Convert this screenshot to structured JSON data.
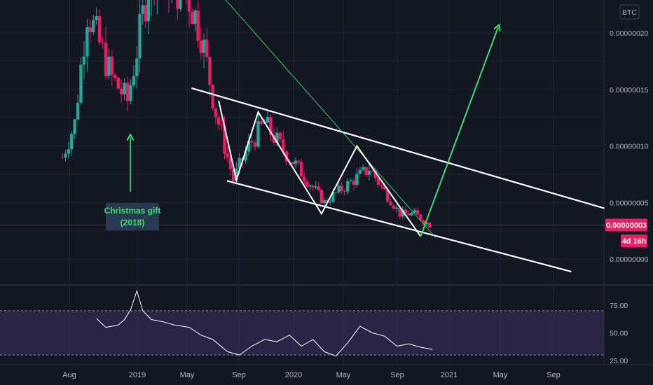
{
  "colors": {
    "background": "#131722",
    "grid": "#1f2431",
    "up": "#26a69a",
    "down": "#ef5350",
    "downPink": "#e91e63",
    "white": "#ffffff",
    "green": "#3ee06b",
    "rsi": "#ffffff",
    "rsiBand": "#7e57c2",
    "priceTag": "#e91e63",
    "axisText": "#b2b5be"
  },
  "header": {
    "currency_badge": "BTC"
  },
  "price_tag": {
    "value": "0.00000003",
    "countdown": "4d 16h"
  },
  "annotation": {
    "line1": "Christmas gift",
    "line2": "(2018)"
  },
  "chart_data": [
    {
      "type": "candlestick",
      "title": "",
      "x_tick_labels": [
        "Aug",
        "2019",
        "May",
        "Sep",
        "2020",
        "May",
        "Sep",
        "2021",
        "May",
        "Sep"
      ],
      "x_tick_dates": [
        "2018-08",
        "2019-01",
        "2019-05",
        "2019-09",
        "2020-01",
        "2020-05",
        "2020-09",
        "2021-01",
        "2021-05",
        "2021-09"
      ],
      "y_tick_labels": [
        "0.00000020",
        "0.00000015",
        "0.00000010",
        "0.00000005",
        "0.00000000"
      ],
      "y_ticks": [
        2e-07,
        1.5e-07,
        1e-07,
        5e-08,
        0.0
      ],
      "ylim": [
        -1.5e-08,
        2.45e-07
      ],
      "grid": true,
      "last_price": 3e-08,
      "candle_period": "weekly",
      "ohlc_samples": [
        {
          "date": "2018-07-16",
          "close": 9e-08
        },
        {
          "date": "2018-08-13",
          "close": 1.2e-07
        },
        {
          "date": "2018-09-10",
          "close": 2.2e-07
        },
        {
          "date": "2018-10-08",
          "close": 1.9e-07
        },
        {
          "date": "2018-11-05",
          "close": 1.6e-07
        },
        {
          "date": "2018-12-10",
          "close": 1.4e-07
        },
        {
          "date": "2019-01-07",
          "close": 2e-07
        },
        {
          "date": "2019-02-04",
          "close": 2.6e-07
        },
        {
          "date": "2019-05-06",
          "close": 2.3e-07
        },
        {
          "date": "2019-06-03",
          "close": 2e-07
        },
        {
          "date": "2019-07-08",
          "close": 1.3e-07
        },
        {
          "date": "2019-08-19",
          "close": 7e-08
        },
        {
          "date": "2019-09-23",
          "close": 1e-07
        },
        {
          "date": "2019-10-28",
          "close": 1.2e-07
        },
        {
          "date": "2019-12-02",
          "close": 1e-07
        },
        {
          "date": "2020-01-13",
          "close": 8e-08
        },
        {
          "date": "2020-03-16",
          "close": 5e-08
        },
        {
          "date": "2020-04-20",
          "close": 6e-08
        },
        {
          "date": "2020-05-25",
          "close": 7e-08
        },
        {
          "date": "2020-06-29",
          "close": 8e-08
        },
        {
          "date": "2020-08-03",
          "close": 6e-08
        },
        {
          "date": "2020-09-07",
          "close": 4e-08
        },
        {
          "date": "2020-10-12",
          "close": 4e-08
        },
        {
          "date": "2020-11-16",
          "close": 3e-08
        }
      ],
      "drawings": [
        {
          "kind": "channel-upper",
          "from": {
            "date": "2019-05-13",
            "value": 1.51e-07
          },
          "to": {
            "date": "2021-12-27",
            "value": 4.5e-08
          }
        },
        {
          "kind": "channel-lower",
          "from": {
            "date": "2019-08-05",
            "value": 6.9e-08
          },
          "to": {
            "date": "2021-10-11",
            "value": -1.1e-08
          }
        },
        {
          "kind": "descending-trendline",
          "from": {
            "date": "2019-06-17",
            "value": 2.48e-07
          },
          "to": {
            "date": "2020-11-30",
            "value": 1.9e-08
          }
        },
        {
          "kind": "zigzag",
          "points": [
            {
              "date": "2019-07-15",
              "value": 1.4e-07
            },
            {
              "date": "2019-08-26",
              "value": 7e-08
            },
            {
              "date": "2019-10-14",
              "value": 1.3e-07
            },
            {
              "date": "2020-03-09",
              "value": 4e-08
            },
            {
              "date": "2020-06-01",
              "value": 1e-07
            },
            {
              "date": "2020-10-26",
              "value": 2e-08
            }
          ]
        },
        {
          "kind": "projection-arrow",
          "from": {
            "date": "2020-10-26",
            "value": 2e-08
          },
          "to": {
            "date": "2021-04-26",
            "value": 2.05e-07
          }
        }
      ]
    },
    {
      "type": "line",
      "title": "",
      "y_tick_labels": [
        "75.00",
        "50.00",
        "25.00"
      ],
      "y_ticks": [
        75,
        50,
        25
      ],
      "ylim": [
        20,
        100
      ],
      "band": [
        30,
        70
      ],
      "grid": true,
      "rsi_points": [
        {
          "date": "2018-10-01",
          "value": 63
        },
        {
          "date": "2018-10-22",
          "value": 55
        },
        {
          "date": "2018-11-19",
          "value": 57
        },
        {
          "date": "2018-12-03",
          "value": 62
        },
        {
          "date": "2018-12-17",
          "value": 71
        },
        {
          "date": "2018-12-31",
          "value": 88
        },
        {
          "date": "2019-01-14",
          "value": 70
        },
        {
          "date": "2019-02-04",
          "value": 62
        },
        {
          "date": "2019-03-04",
          "value": 60
        },
        {
          "date": "2019-04-01",
          "value": 57
        },
        {
          "date": "2019-05-06",
          "value": 55
        },
        {
          "date": "2019-06-03",
          "value": 48
        },
        {
          "date": "2019-07-01",
          "value": 44
        },
        {
          "date": "2019-08-05",
          "value": 33
        },
        {
          "date": "2019-09-02",
          "value": 30
        },
        {
          "date": "2019-09-30",
          "value": 38
        },
        {
          "date": "2019-10-28",
          "value": 44
        },
        {
          "date": "2019-11-25",
          "value": 42
        },
        {
          "date": "2019-12-23",
          "value": 48
        },
        {
          "date": "2020-01-20",
          "value": 38
        },
        {
          "date": "2020-02-17",
          "value": 44
        },
        {
          "date": "2020-03-16",
          "value": 33
        },
        {
          "date": "2020-04-13",
          "value": 29
        },
        {
          "date": "2020-05-11",
          "value": 41
        },
        {
          "date": "2020-06-08",
          "value": 56
        },
        {
          "date": "2020-07-06",
          "value": 50
        },
        {
          "date": "2020-08-03",
          "value": 47
        },
        {
          "date": "2020-08-31",
          "value": 38
        },
        {
          "date": "2020-09-28",
          "value": 40
        },
        {
          "date": "2020-10-26",
          "value": 37
        },
        {
          "date": "2020-11-23",
          "value": 35
        }
      ]
    }
  ]
}
